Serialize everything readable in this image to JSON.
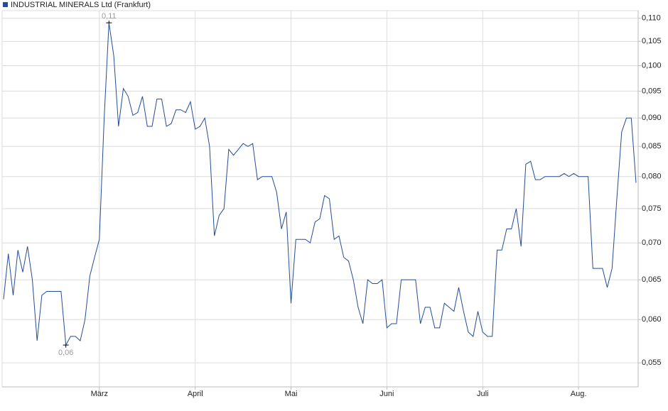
{
  "chart_data": {
    "type": "line",
    "log_scale": true,
    "grid": true,
    "legend_position": "top-left",
    "max_label": "0,11",
    "min_label": "0,06",
    "categories": [
      null,
      null,
      null,
      null,
      null,
      null,
      null,
      null,
      null,
      null,
      null,
      null,
      null,
      null,
      null,
      null,
      null,
      null,
      null,
      null,
      "März",
      null,
      null,
      null,
      null,
      null,
      null,
      null,
      null,
      null,
      null,
      null,
      null,
      null,
      null,
      null,
      null,
      null,
      null,
      null,
      "April",
      null,
      null,
      null,
      null,
      null,
      null,
      null,
      null,
      null,
      null,
      null,
      null,
      null,
      null,
      null,
      null,
      null,
      null,
      null,
      "Mai",
      null,
      null,
      null,
      null,
      null,
      null,
      null,
      null,
      null,
      null,
      null,
      null,
      null,
      null,
      null,
      null,
      null,
      null,
      null,
      "Juni",
      null,
      null,
      null,
      null,
      null,
      null,
      null,
      null,
      null,
      null,
      null,
      null,
      null,
      null,
      null,
      null,
      null,
      null,
      null,
      "Juli",
      null,
      null,
      null,
      null,
      null,
      null,
      null,
      null,
      null,
      null,
      null,
      null,
      null,
      null,
      null,
      null,
      null,
      null,
      null,
      "Aug.",
      null,
      null,
      null,
      null,
      null,
      null,
      null,
      null,
      null,
      null,
      null,
      null
    ],
    "series": [
      {
        "name": "INDUSTRIAL MINERALS Ltd (Frankfurt)",
        "color": "#234d96",
        "values": [
          0.0625,
          0.0685,
          0.063,
          0.069,
          0.066,
          0.0695,
          0.065,
          0.0575,
          0.063,
          0.0635,
          0.0635,
          0.0635,
          0.0635,
          0.057,
          0.058,
          0.058,
          0.0575,
          0.06,
          0.0655,
          0.068,
          0.0705,
          0.09,
          0.109,
          0.102,
          0.0885,
          0.0955,
          0.094,
          0.0905,
          0.091,
          0.094,
          0.0885,
          0.0885,
          0.0935,
          0.0935,
          0.0885,
          0.089,
          0.0915,
          0.0915,
          0.091,
          0.093,
          0.088,
          0.0885,
          0.09,
          0.085,
          0.071,
          0.074,
          0.075,
          0.0845,
          0.0835,
          0.0845,
          0.0855,
          0.085,
          0.0855,
          0.0795,
          0.08,
          0.08,
          0.08,
          0.0775,
          0.072,
          0.0745,
          0.062,
          0.0705,
          0.0705,
          0.0705,
          0.07,
          0.073,
          0.0735,
          0.077,
          0.0765,
          0.0705,
          0.071,
          0.068,
          0.0675,
          0.065,
          0.0615,
          0.0595,
          0.065,
          0.0645,
          0.0645,
          0.065,
          0.059,
          0.0595,
          0.0595,
          0.065,
          0.065,
          0.065,
          0.065,
          0.0595,
          0.0615,
          0.0615,
          0.059,
          0.059,
          0.062,
          0.0615,
          0.061,
          0.064,
          0.061,
          0.0585,
          0.058,
          0.061,
          0.0585,
          0.058,
          0.058,
          0.069,
          0.069,
          0.072,
          0.072,
          0.075,
          0.0695,
          0.082,
          0.0825,
          0.0795,
          0.0795,
          0.08,
          0.08,
          0.08,
          0.08,
          0.0805,
          0.08,
          0.0805,
          0.08,
          0.08,
          0.08,
          0.0665,
          0.0665,
          0.0665,
          0.064,
          0.0665,
          0.0765,
          0.0875,
          0.09,
          0.09,
          0.079
        ]
      }
    ],
    "ylim": [
      0.0524,
      0.1117
    ],
    "yticks": [
      {
        "value": 0.055,
        "label": "0,055"
      },
      {
        "value": 0.06,
        "label": "0,060"
      },
      {
        "value": 0.065,
        "label": "0,065"
      },
      {
        "value": 0.07,
        "label": "0,070"
      },
      {
        "value": 0.075,
        "label": "0,075"
      },
      {
        "value": 0.08,
        "label": "0,080"
      },
      {
        "value": 0.085,
        "label": "0,085"
      },
      {
        "value": 0.09,
        "label": "0,090"
      },
      {
        "value": 0.095,
        "label": "0,095"
      },
      {
        "value": 0.1,
        "label": "0,100"
      },
      {
        "value": 0.105,
        "label": "0,105"
      },
      {
        "value": 0.11,
        "label": "0,110"
      }
    ]
  }
}
